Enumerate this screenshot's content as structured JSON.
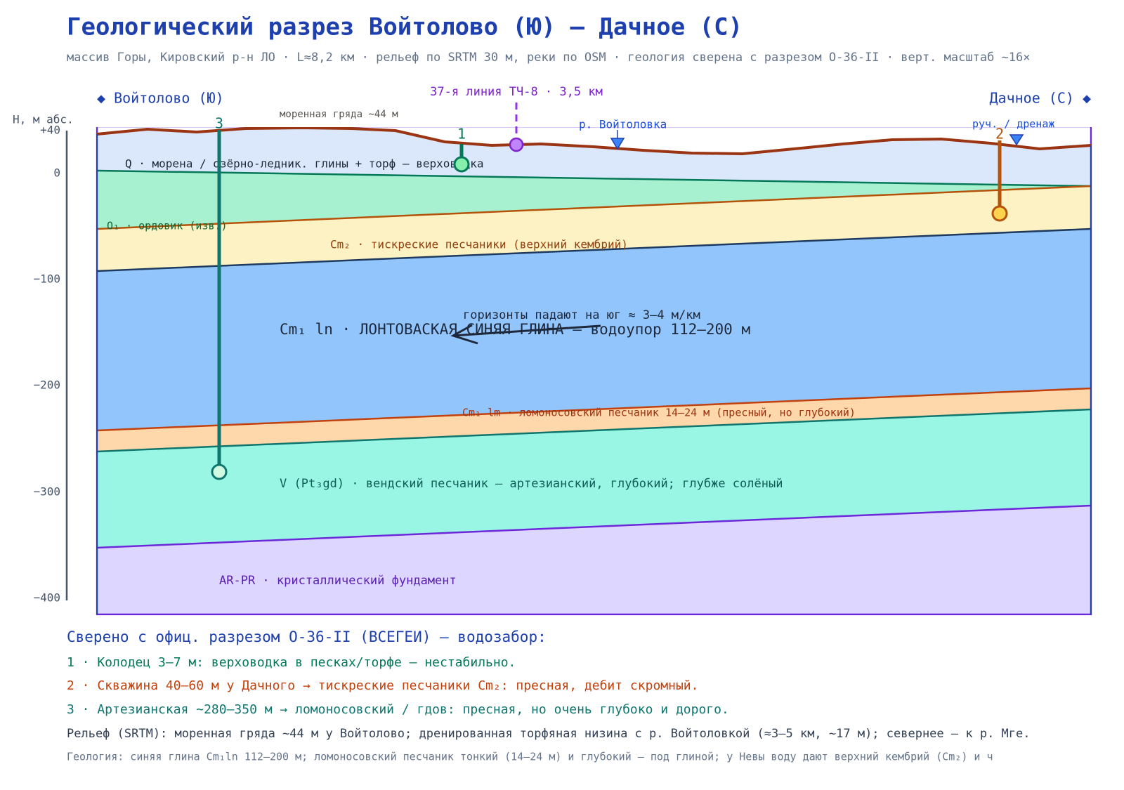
{
  "header": {
    "title": "Геологический разрез  Войтолово (Ю) — Дачное (С)",
    "subtitle": "массив Горы, Кировский р-н ЛО · L≈8,2 км · рельеф по SRTM 30 м, реки по OSM · геология сверена с разрезом O-36-II · верт. масштаб ~16×"
  },
  "section": {
    "axis_label": "H, м абс.",
    "ticks": [
      "+40",
      "0",
      "−100",
      "−200",
      "−300",
      "−400"
    ],
    "south": "◆ Войтолово (Ю)",
    "north": "Дачное (С) ◆",
    "marker": "37-я линия ТЧ-8 · 3,5 км",
    "ridge": "моренная гряда ~44 м",
    "river": "р. Войтоловка",
    "stream": "руч. / дренаж",
    "dip": "горизонты падают на юг ≈ 3–4 м/км",
    "layers": [
      "Q · морена / озёрно-ледник. глины + торф — верховодка",
      "O₁ · ордовик (изв.)",
      "Cm₂ · тискреские песчаники (верхний кембрий)",
      "Cm₁ ln · ЛОНТОВАСКАЯ СИНЯЯ ГЛИНА — водоупор 112–200 м",
      "Cm₁ lm · ломоносовский песчаник 14–24 м (пресный, но глубокий)",
      "V (Pt₃gd) · вендский песчаник — артезианский, глубокий; глубже солёный",
      "AR-PR · кристаллический фундамент"
    ],
    "wells": [
      "1",
      "2",
      "3"
    ]
  },
  "notes": {
    "title": "Сверено с офиц. разрезом O-36-II (ВСЕГЕИ) — водозабор:",
    "lines": [
      "1 · Колодец 3–7 м: верховодка в песках/торфе — нестабильно.",
      "2 · Скважина 40–60 м у Дачного → тискреские песчаники Cm₂: пресная, дебит скромный.",
      "3 · Артезианская ~280–350 м → ломоносовский / гдов: пресная, но очень глубоко и дорого.",
      "Рельеф (SRTM): моренная гряда ~44 м у Войтолово; дренированная торфяная низина с р. Войтоловкой (≈3–5 км, ~17 м); севернее — к р. Мге.",
      "Геология: синяя глина Cm₁ln 112–200 м; ломоносовский песчаник тонкий (14–24 м) и глубокий — под глиной; у Невы воду дают верхний кембрий (Cm₂) и ч"
    ]
  }
}
